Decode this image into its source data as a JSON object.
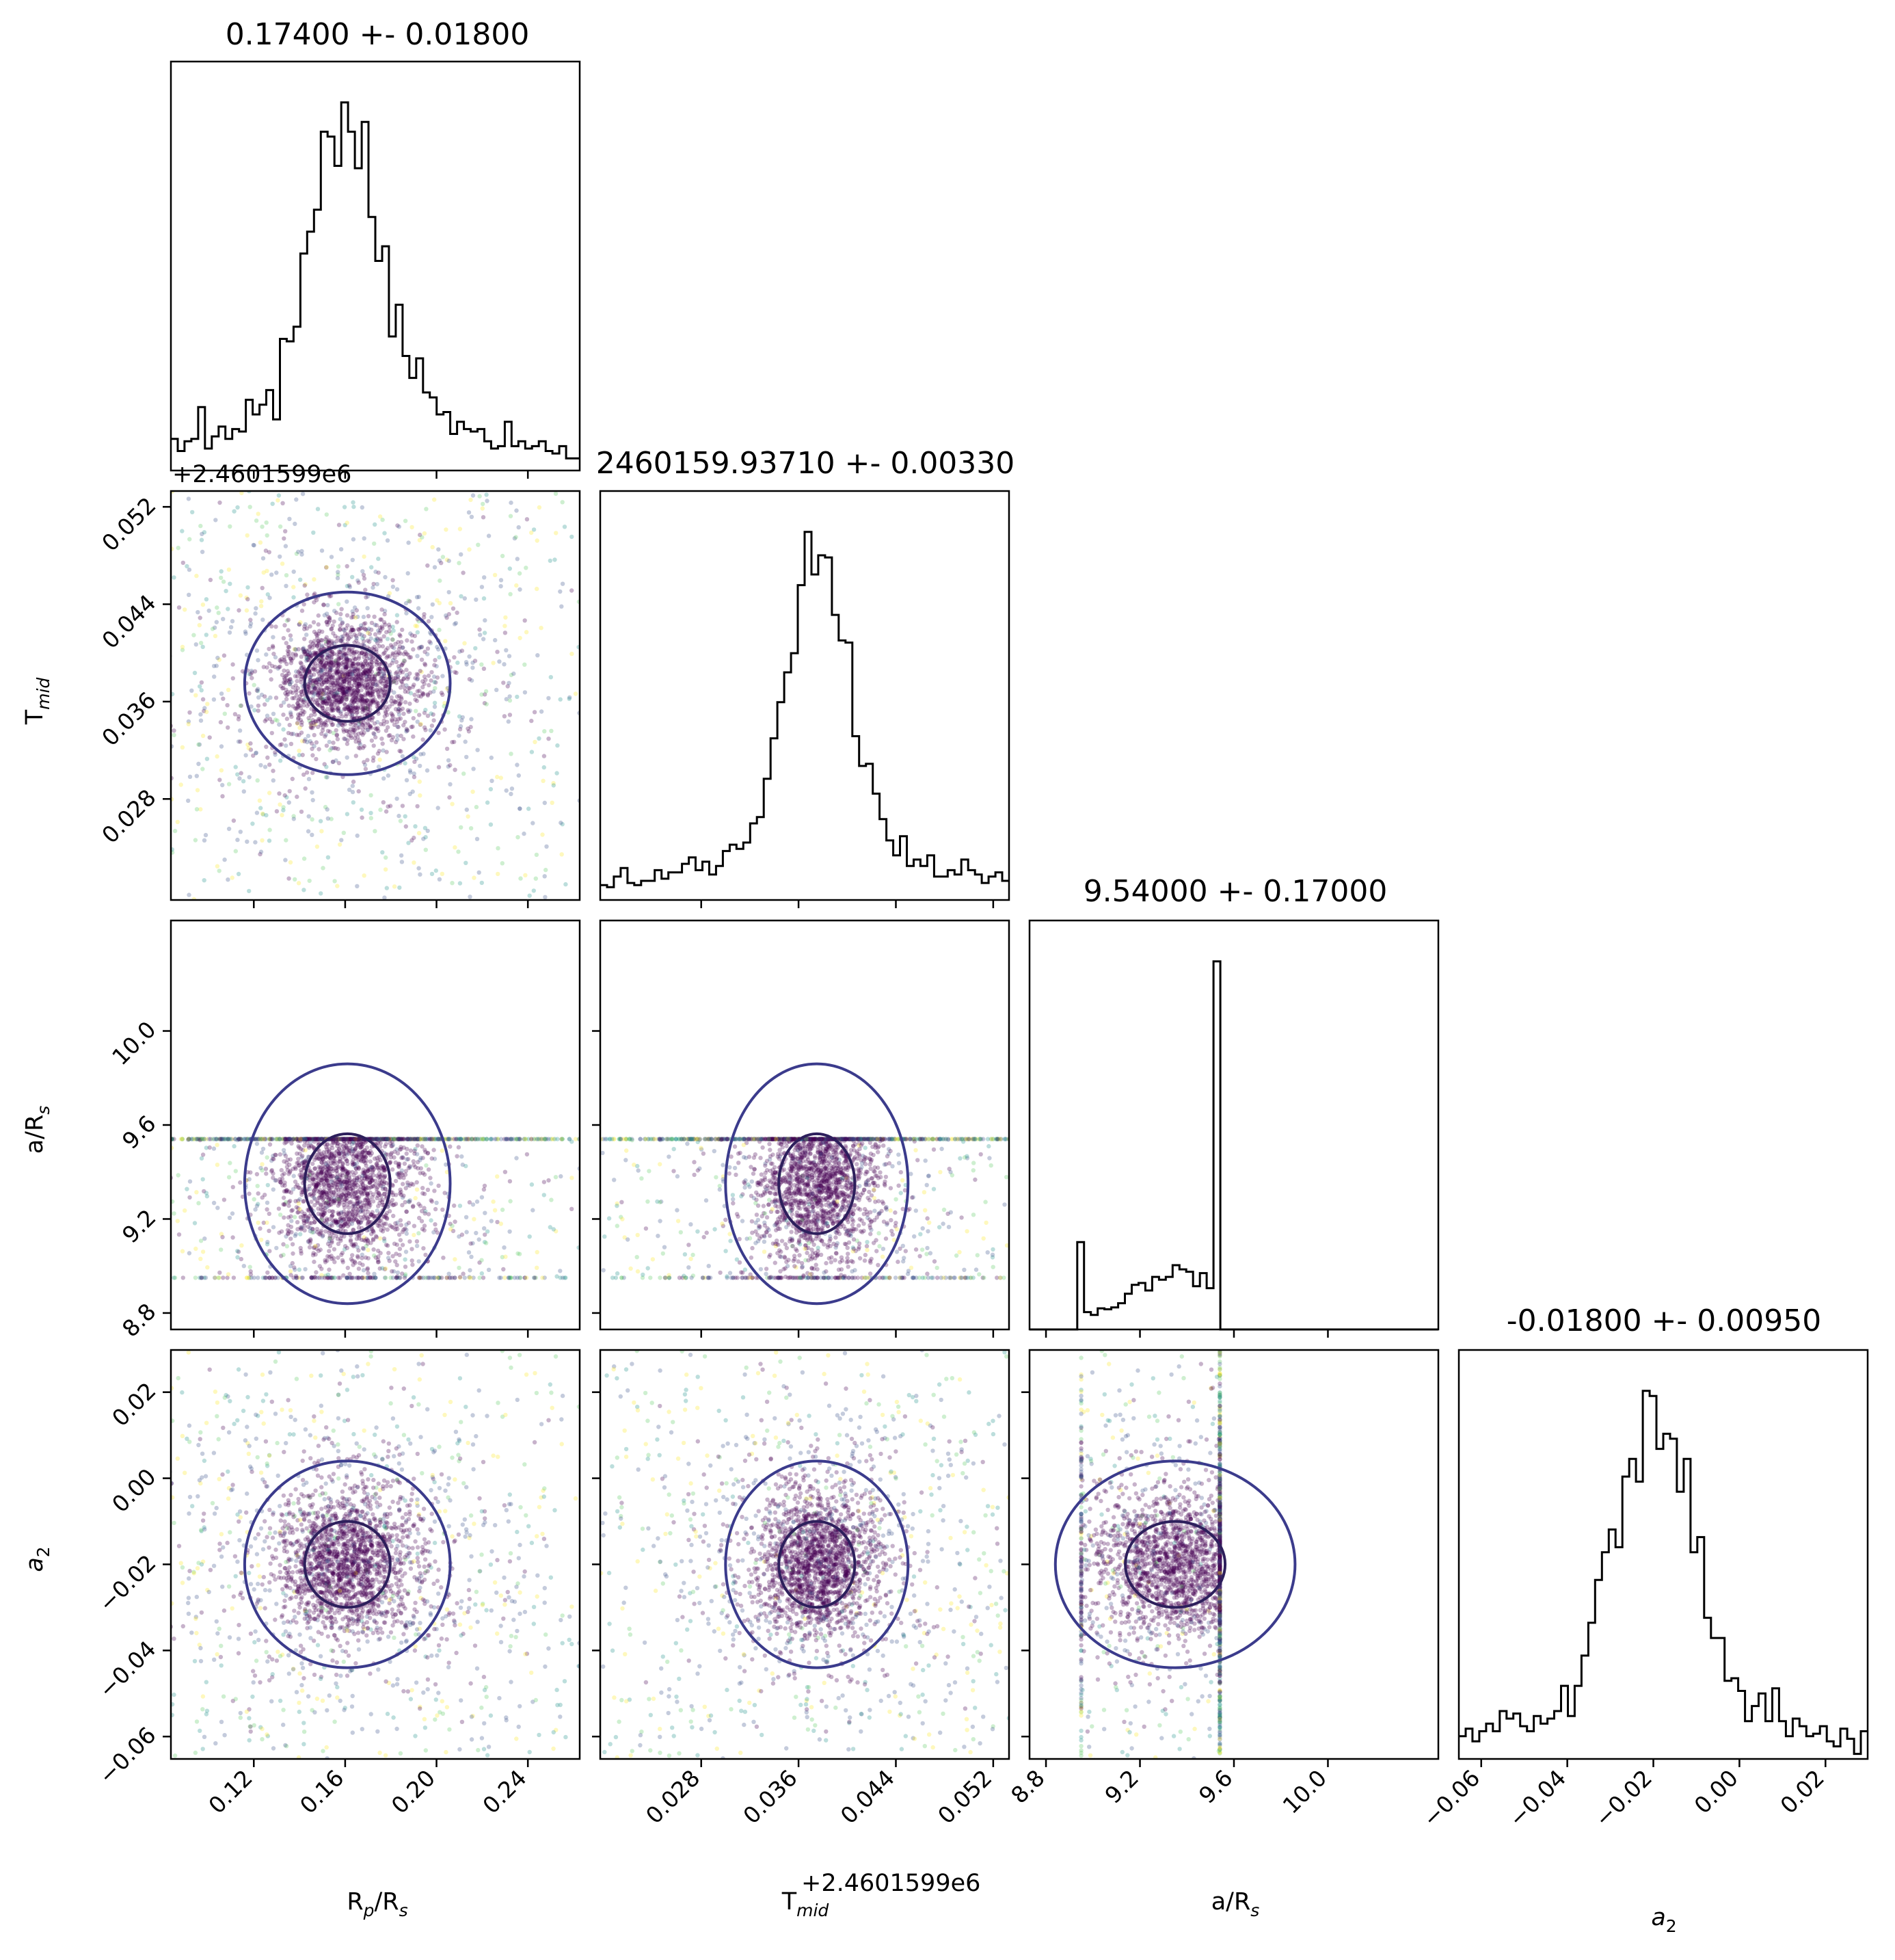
{
  "chart_data": {
    "type": "corner",
    "parameters": [
      {
        "key": "rp",
        "label": "R_p/R_s",
        "range": [
          0.0837,
          0.2627
        ],
        "ticks": [
          0.12,
          0.16,
          0.2,
          0.24
        ],
        "tick_labels": [
          "0.12",
          "0.16",
          "0.20",
          "0.24"
        ]
      },
      {
        "key": "tmid",
        "label": "T_mid",
        "range": [
          0.0197,
          0.0533
        ],
        "ticks": [
          0.028,
          0.036,
          0.044,
          0.052
        ],
        "tick_labels": [
          "0.028",
          "0.036",
          "0.044",
          "0.052"
        ],
        "offset_text": "+2.4601599e6"
      },
      {
        "key": "a",
        "label": "a/R_s",
        "range": [
          8.73,
          10.47
        ],
        "ticks": [
          8.8,
          9.2,
          9.6,
          10.0
        ],
        "tick_labels": [
          "8.8",
          "9.2",
          "9.6",
          "10.0"
        ]
      },
      {
        "key": "a2",
        "label": "a_2",
        "range": [
          -0.0652,
          0.0298
        ],
        "ticks": [
          -0.06,
          -0.04,
          -0.02,
          0.0,
          0.02
        ],
        "tick_labels": [
          "−0.06",
          "−0.04",
          "−0.02",
          "0.00",
          "0.02"
        ]
      }
    ],
    "titles": [
      "0.17400 +- 0.01800",
      "2460159.93710 +- 0.00330",
      "9.54000 +- 0.17000",
      "-0.01800 +- 0.00950"
    ],
    "axis_labels": {
      "rp": {
        "base": "R",
        "sub": "p",
        "mid": "/R",
        "sub2": "s"
      },
      "tmid": {
        "base": "T",
        "sub": "mid"
      },
      "a": {
        "base": "a/R",
        "sub": "s"
      },
      "a2": {
        "base": "a",
        "sub": "2"
      }
    },
    "point_colormap": "viridis",
    "contour_colors": [
      "#3b3b8c",
      "#2d1f5c",
      "#f5d300"
    ],
    "scatter_color": "#3b2a6b"
  }
}
